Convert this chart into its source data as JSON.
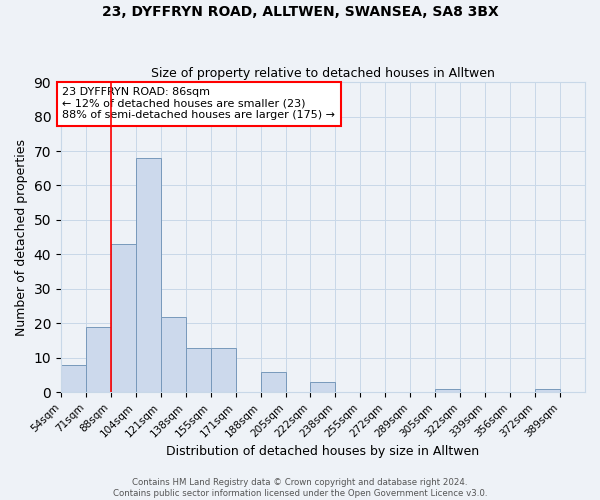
{
  "title": "23, DYFFRYN ROAD, ALLTWEN, SWANSEA, SA8 3BX",
  "subtitle": "Size of property relative to detached houses in Alltwen",
  "xlabel": "Distribution of detached houses by size in Alltwen",
  "ylabel": "Number of detached properties",
  "footer_lines": [
    "Contains HM Land Registry data © Crown copyright and database right 2024.",
    "Contains public sector information licensed under the Open Government Licence v3.0."
  ],
  "bin_labels": [
    "54sqm",
    "71sqm",
    "88sqm",
    "104sqm",
    "121sqm",
    "138sqm",
    "155sqm",
    "171sqm",
    "188sqm",
    "205sqm",
    "222sqm",
    "238sqm",
    "255sqm",
    "272sqm",
    "289sqm",
    "305sqm",
    "322sqm",
    "339sqm",
    "356sqm",
    "372sqm",
    "389sqm"
  ],
  "bar_values": [
    8,
    19,
    43,
    68,
    22,
    13,
    13,
    0,
    6,
    0,
    3,
    0,
    0,
    0,
    0,
    1,
    0,
    0,
    0,
    1,
    0
  ],
  "bar_color": "#ccd9ec",
  "bar_edge_color": "#7799bb",
  "grid_color": "#c8d8e8",
  "ylim": [
    0,
    90
  ],
  "yticks": [
    0,
    10,
    20,
    30,
    40,
    50,
    60,
    70,
    80,
    90
  ],
  "annotation_line1": "23 DYFFRYN ROAD: 86sqm",
  "annotation_line2": "← 12% of detached houses are smaller (23)",
  "annotation_line3": "88% of semi-detached houses are larger (175) →",
  "red_line_bin_index": 2,
  "box_color": "white",
  "box_edge_color": "red",
  "property_line_color": "red",
  "background_color": "#eef2f7"
}
